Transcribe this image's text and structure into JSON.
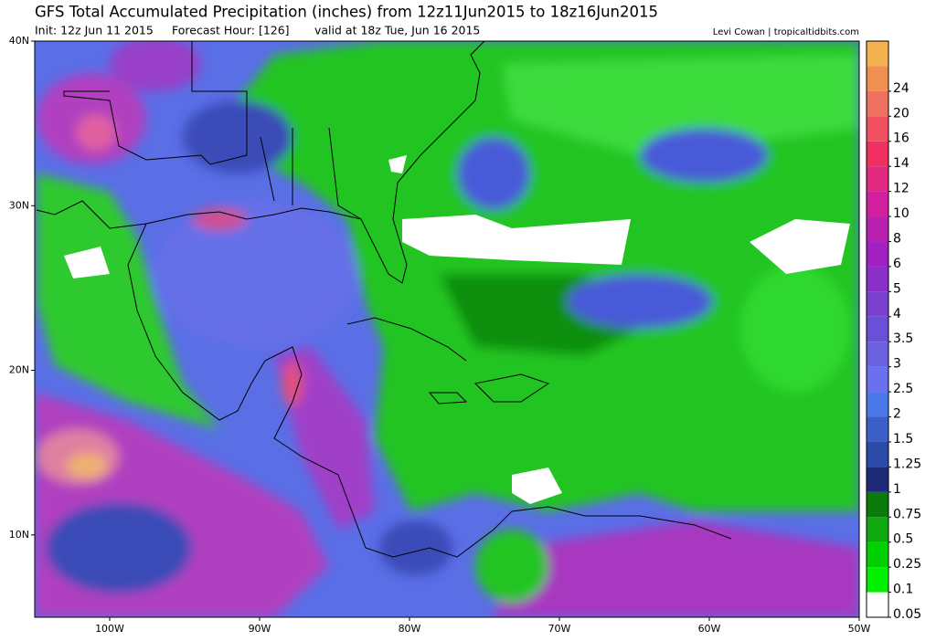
{
  "header": {
    "title": "GFS Total Accumulated Precipitation (inches) from 12z11Jun2015 to 18z16Jun2015",
    "init": "Init: 12z Jun 11 2015",
    "forecast_hour": "Forecast Hour: [126]",
    "valid": "valid at 18z Tue, Jun 16 2015",
    "credit": "Levi Cowan | tropicaltidbits.com"
  },
  "map": {
    "lonlim": [
      -105,
      -50
    ],
    "latlim": [
      5,
      40
    ],
    "lon_ticks": [
      {
        "value": -100,
        "label": "100W"
      },
      {
        "value": -90,
        "label": "90W"
      },
      {
        "value": -80,
        "label": "80W"
      },
      {
        "value": -70,
        "label": "70W"
      },
      {
        "value": -60,
        "label": "60W"
      },
      {
        "value": -50,
        "label": "50W"
      }
    ],
    "lat_ticks": [
      {
        "value": 10,
        "label": "10N"
      },
      {
        "value": 20,
        "label": "20N"
      },
      {
        "value": 30,
        "label": "30N"
      },
      {
        "value": 40,
        "label": "40N"
      }
    ]
  },
  "colorbar": {
    "levels": [
      0.05,
      0.1,
      0.25,
      0.5,
      0.75,
      1,
      1.25,
      1.5,
      2,
      2.5,
      3,
      3.5,
      4,
      5,
      6,
      8,
      10,
      12,
      14,
      16,
      20,
      24
    ],
    "colors": [
      "#ffffff",
      "#00f000",
      "#00d000",
      "#10a810",
      "#0a7a0a",
      "#1c2a78",
      "#2c4aa8",
      "#3a60c8",
      "#4a78e8",
      "#6a70f0",
      "#6a60e0",
      "#6a50d8",
      "#7a40d0",
      "#8a30c8",
      "#a020c0",
      "#b820b0",
      "#d020a0",
      "#e02a80",
      "#f03060",
      "#f05060",
      "#f07060",
      "#f09050",
      "#f5b050"
    ]
  }
}
